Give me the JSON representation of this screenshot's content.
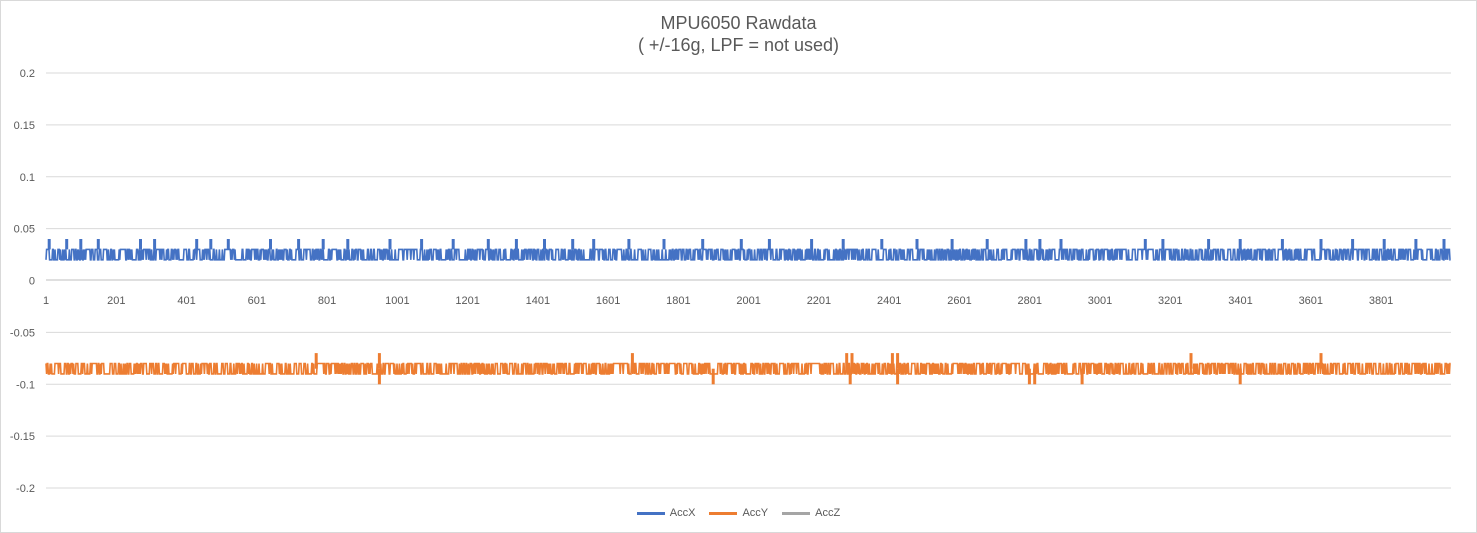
{
  "chart_data": {
    "type": "line",
    "title": "MPU6050 Rawdata",
    "subtitle": "( +/-16g, LPF = not used)",
    "xlabel": "",
    "ylabel": "",
    "x_range": [
      1,
      4000
    ],
    "x_tick_labels": [
      "1",
      "201",
      "401",
      "601",
      "801",
      "1001",
      "1201",
      "1401",
      "1601",
      "1801",
      "2001",
      "2201",
      "2401",
      "2601",
      "2801",
      "3001",
      "3201",
      "3401",
      "3601",
      "3801"
    ],
    "ylim": [
      -0.2,
      0.2
    ],
    "y_ticks": [
      0.2,
      0.15,
      0.1,
      0.05,
      0,
      -0.05,
      -0.1,
      -0.15,
      -0.2
    ],
    "y_tick_labels": [
      "0.2",
      "0.15",
      "0.1",
      "0.05",
      "0",
      "-0.05",
      "-0.1",
      "-0.15",
      "-0.2"
    ],
    "grid": "horizontal",
    "legend_position": "bottom",
    "series": [
      {
        "name": "AccX",
        "color": "#4472C4",
        "baseline": 0.03,
        "noise_levels": [
          0.02,
          0.03
        ],
        "spikes": [
          {
            "x": 10,
            "y": 0.04
          },
          {
            "x": 60,
            "y": 0.04
          },
          {
            "x": 100,
            "y": 0.04
          },
          {
            "x": 150,
            "y": 0.04
          },
          {
            "x": 270,
            "y": 0.04
          },
          {
            "x": 310,
            "y": 0.04
          },
          {
            "x": 430,
            "y": 0.04
          },
          {
            "x": 470,
            "y": 0.04
          },
          {
            "x": 520,
            "y": 0.04
          },
          {
            "x": 640,
            "y": 0.04
          },
          {
            "x": 720,
            "y": 0.04
          },
          {
            "x": 790,
            "y": 0.04
          },
          {
            "x": 860,
            "y": 0.04
          },
          {
            "x": 980,
            "y": 0.04
          },
          {
            "x": 1070,
            "y": 0.04
          },
          {
            "x": 1160,
            "y": 0.04
          },
          {
            "x": 1260,
            "y": 0.04
          },
          {
            "x": 1340,
            "y": 0.04
          },
          {
            "x": 1420,
            "y": 0.04
          },
          {
            "x": 1500,
            "y": 0.04
          },
          {
            "x": 1560,
            "y": 0.04
          },
          {
            "x": 1660,
            "y": 0.04
          },
          {
            "x": 1760,
            "y": 0.04
          },
          {
            "x": 1870,
            "y": 0.04
          },
          {
            "x": 1980,
            "y": 0.04
          },
          {
            "x": 2060,
            "y": 0.04
          },
          {
            "x": 2180,
            "y": 0.04
          },
          {
            "x": 2270,
            "y": 0.04
          },
          {
            "x": 2380,
            "y": 0.04
          },
          {
            "x": 2480,
            "y": 0.04
          },
          {
            "x": 2580,
            "y": 0.04
          },
          {
            "x": 2680,
            "y": 0.04
          },
          {
            "x": 2790,
            "y": 0.04
          },
          {
            "x": 2830,
            "y": 0.04
          },
          {
            "x": 2890,
            "y": 0.04
          },
          {
            "x": 3130,
            "y": 0.04
          },
          {
            "x": 3180,
            "y": 0.04
          },
          {
            "x": 3310,
            "y": 0.04
          },
          {
            "x": 3400,
            "y": 0.04
          },
          {
            "x": 3520,
            "y": 0.04
          },
          {
            "x": 3630,
            "y": 0.04
          },
          {
            "x": 3720,
            "y": 0.04
          },
          {
            "x": 3810,
            "y": 0.04
          },
          {
            "x": 3900,
            "y": 0.04
          },
          {
            "x": 3980,
            "y": 0.04
          }
        ]
      },
      {
        "name": "AccY",
        "color": "#ED7D31",
        "baseline": -0.085,
        "noise_levels": [
          -0.08,
          -0.09
        ],
        "spikes": [
          {
            "x": 770,
            "y": -0.07
          },
          {
            "x": 950,
            "y": -0.07
          },
          {
            "x": 1670,
            "y": -0.07
          },
          {
            "x": 2280,
            "y": -0.07
          },
          {
            "x": 2295,
            "y": -0.07
          },
          {
            "x": 2410,
            "y": -0.07
          },
          {
            "x": 2425,
            "y": -0.07
          },
          {
            "x": 3260,
            "y": -0.07
          },
          {
            "x": 3630,
            "y": -0.07
          },
          {
            "x": 950,
            "y": -0.1
          },
          {
            "x": 1900,
            "y": -0.1
          },
          {
            "x": 2290,
            "y": -0.1
          },
          {
            "x": 2425,
            "y": -0.1
          },
          {
            "x": 2800,
            "y": -0.1
          },
          {
            "x": 2815,
            "y": -0.1
          },
          {
            "x": 2950,
            "y": -0.1
          },
          {
            "x": 3400,
            "y": -0.1
          }
        ]
      },
      {
        "name": "AccZ",
        "color": "#A5A5A5",
        "baseline": null,
        "noise_levels": [],
        "spikes": []
      }
    ]
  }
}
